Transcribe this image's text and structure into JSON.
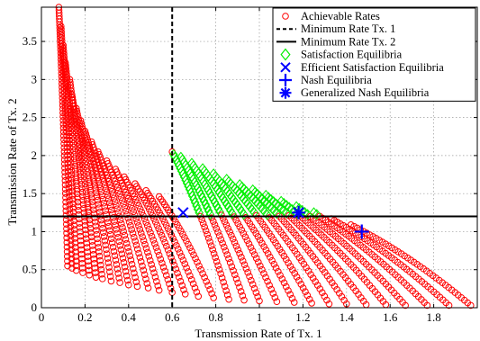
{
  "chart_data": {
    "type": "scatter",
    "xlabel": "Transmission Rate of Tx. 1",
    "ylabel": "Transmission Rate of Tx. 2",
    "xlim": [
      0,
      2
    ],
    "ylim": [
      0,
      3.95
    ],
    "xticks": [
      "0",
      "0.2",
      "0.4",
      "0.6",
      "0.8",
      "1",
      "1.2",
      "1.4",
      "1.6",
      "1.8"
    ],
    "yticks": [
      "0",
      "0.5",
      "1",
      "1.5",
      "2",
      "2.5",
      "3",
      "3.5"
    ],
    "grid": true,
    "legend_position": "top-right",
    "colors": {
      "achievable": "#ff0000",
      "satisfaction": "#00ee00",
      "efficient": "#0000ff",
      "nash": "#0000ff",
      "generalized": "#0000ff",
      "min_rate": "#000000"
    },
    "min_rate_tx1": 0.6,
    "min_rate_tx2": 1.2,
    "legend": [
      {
        "key": "achievable",
        "label": "Achievable Rates",
        "marker": "circle-marker"
      },
      {
        "key": "min1",
        "label": "Minimum Rate Tx. 1",
        "marker": "dashed-line"
      },
      {
        "key": "min2",
        "label": "Minimum Rate Tx. 2",
        "marker": "solid-line"
      },
      {
        "key": "satisfaction",
        "label": "Satisfaction Equilibria",
        "marker": "diamond-marker"
      },
      {
        "key": "efficient",
        "label": "Efficient Satisfaction Equilibria",
        "marker": "x-marker"
      },
      {
        "key": "nash",
        "label": "Nash Equilibria",
        "marker": "plus-marker"
      },
      {
        "key": "generalized",
        "label": "Generalized Nash Equilibria",
        "marker": "asterisk-marker"
      }
    ],
    "achievable_region": {
      "description_points": "ray families: for n in 0..23, ray from (0.12 + 0.06*n? , ...) sampled",
      "rays": [
        {
          "start": [
            0.08,
            3.95
          ],
          "end": [
            0.12,
            0.55
          ]
        },
        {
          "start": [
            0.09,
            3.7
          ],
          "end": [
            0.14,
            0.52
          ]
        },
        {
          "start": [
            0.1,
            3.45
          ],
          "end": [
            0.16,
            0.49
          ]
        },
        {
          "start": [
            0.11,
            3.22
          ],
          "end": [
            0.19,
            0.46
          ]
        },
        {
          "start": [
            0.13,
            3.0
          ],
          "end": [
            0.22,
            0.43
          ]
        },
        {
          "start": [
            0.14,
            2.8
          ],
          "end": [
            0.25,
            0.4
          ]
        },
        {
          "start": [
            0.16,
            2.62
          ],
          "end": [
            0.28,
            0.38
          ]
        },
        {
          "start": [
            0.18,
            2.46
          ],
          "end": [
            0.32,
            0.35
          ]
        },
        {
          "start": [
            0.2,
            2.32
          ],
          "end": [
            0.36,
            0.33
          ]
        },
        {
          "start": [
            0.23,
            2.18
          ],
          "end": [
            0.4,
            0.3
          ]
        },
        {
          "start": [
            0.26,
            2.05
          ],
          "end": [
            0.44,
            0.28
          ]
        },
        {
          "start": [
            0.3,
            1.93
          ],
          "end": [
            0.49,
            0.26
          ]
        },
        {
          "start": [
            0.34,
            1.82
          ],
          "end": [
            0.54,
            0.23
          ]
        },
        {
          "start": [
            0.38,
            1.72
          ],
          "end": [
            0.6,
            0.2
          ]
        },
        {
          "start": [
            0.43,
            1.63
          ],
          "end": [
            0.66,
            0.18
          ]
        },
        {
          "start": [
            0.48,
            1.54
          ],
          "end": [
            0.72,
            0.15
          ]
        },
        {
          "start": [
            0.54,
            1.46
          ],
          "end": [
            0.79,
            0.13
          ]
        },
        {
          "start": [
            0.6,
            2.05
          ],
          "end": [
            0.86,
            0.11
          ]
        },
        {
          "start": [
            0.64,
            1.98
          ],
          "end": [
            0.93,
            0.1
          ]
        },
        {
          "start": [
            0.69,
            1.9
          ],
          "end": [
            1.0,
            0.09
          ]
        },
        {
          "start": [
            0.74,
            1.83
          ],
          "end": [
            1.08,
            0.08
          ]
        },
        {
          "start": [
            0.79,
            1.76
          ],
          "end": [
            1.16,
            0.07
          ]
        },
        {
          "start": [
            0.85,
            1.69
          ],
          "end": [
            1.24,
            0.06
          ]
        },
        {
          "start": [
            0.91,
            1.62
          ],
          "end": [
            1.32,
            0.05
          ]
        },
        {
          "start": [
            0.97,
            1.55
          ],
          "end": [
            1.4,
            0.05
          ]
        },
        {
          "start": [
            1.03,
            1.48
          ],
          "end": [
            1.49,
            0.04
          ]
        },
        {
          "start": [
            1.1,
            1.4
          ],
          "end": [
            1.58,
            0.04
          ]
        },
        {
          "start": [
            1.17,
            1.33
          ],
          "end": [
            1.67,
            0.03
          ]
        },
        {
          "start": [
            1.25,
            1.25
          ],
          "end": [
            1.77,
            0.03
          ]
        },
        {
          "start": [
            1.33,
            1.17
          ],
          "end": [
            1.87,
            0.03
          ]
        },
        {
          "start": [
            1.42,
            1.09
          ],
          "end": [
            1.97,
            0.03
          ]
        }
      ]
    },
    "efficient_points": [
      [
        0.65,
        1.25
      ],
      [
        1.18,
        1.25
      ]
    ],
    "nash_points": [
      [
        1.47,
        1.0
      ]
    ],
    "generalized_points": [
      [
        1.18,
        1.25
      ]
    ]
  }
}
